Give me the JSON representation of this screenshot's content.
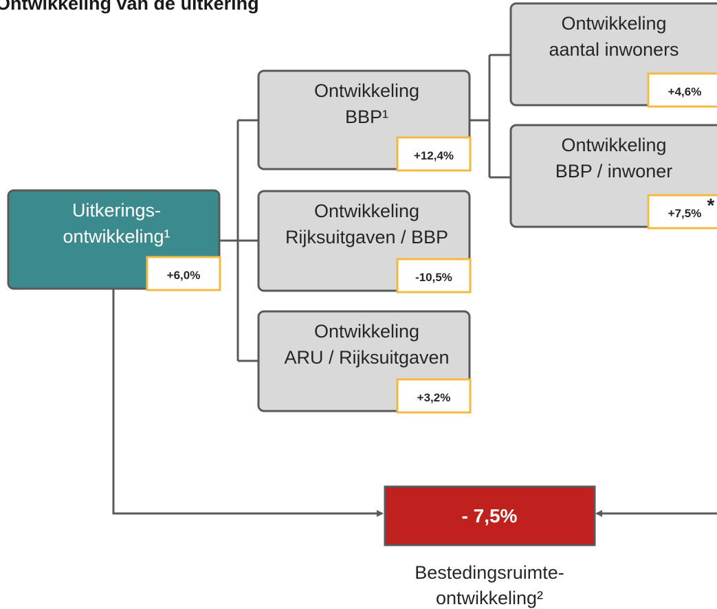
{
  "title": "Ontwikkeling van de uitkering",
  "nodes": [
    {
      "label": [
        "Uitkerings-",
        "ontwikkeling¹"
      ],
      "value": "+6,0%"
    },
    {
      "label": [
        "Ontwikkeling",
        "BBP¹"
      ],
      "value": "+12,4%"
    },
    {
      "label": [
        "Ontwikkeling",
        "Rijksuitgaven / BBP"
      ],
      "value": "-10,5%"
    },
    {
      "label": [
        "Ontwikkeling",
        "ARU / Rijksuitgaven"
      ],
      "value": "+3,2%"
    },
    {
      "label": [
        "Ontwikkeling",
        "aantal inwoners"
      ],
      "value": "+4,6%"
    },
    {
      "label": [
        "Ontwikkeling",
        "BBP / inwoner"
      ],
      "value": "+7,5%"
    }
  ],
  "note": "*",
  "result": {
    "value": "- 7,5%",
    "label": [
      "Bestedingsruimte-",
      "ontwikkeling²"
    ]
  }
}
